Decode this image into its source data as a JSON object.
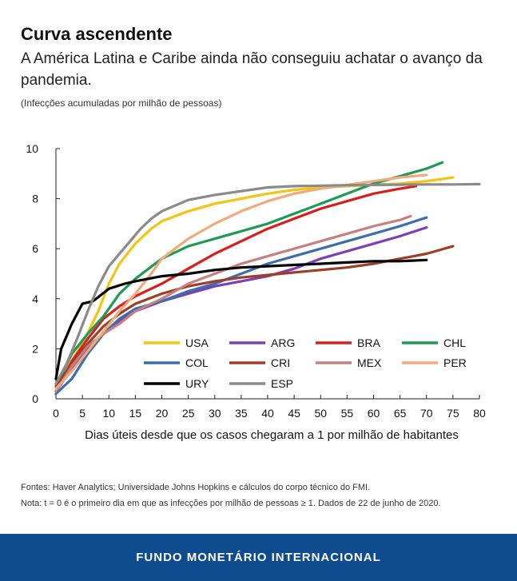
{
  "header": {
    "title": "Curva ascendente",
    "subtitle": "A América Latina e Caribe ainda não conseguiu achatar o avanço da pandemia.",
    "units": "(Infecções acumuladas por milhão de pessoas)"
  },
  "notes": {
    "source": "Fontes: Haver Analytics; Universidade Johns Hopkins e cálculos do corpo técnico do FMI.",
    "note": "Nota: t = 0 é o primeiro dia em que as infecções por milhão de pessoas ≥ 1. Dados de 22 de junho de 2020."
  },
  "footer": {
    "label": "FUNDO MONETÁRIO INTERNACIONAL"
  },
  "chart_data": {
    "type": "line",
    "title": "Curva ascendente",
    "xlabel": "Dias úteis desde que os casos chegaram a 1 por milhão de habitantes",
    "ylabel": "",
    "xlim": [
      0,
      80
    ],
    "ylim": [
      0,
      10
    ],
    "xticks": [
      0,
      5,
      10,
      15,
      20,
      25,
      30,
      35,
      40,
      45,
      50,
      55,
      60,
      65,
      70,
      75,
      80
    ],
    "yticks": [
      0,
      2,
      4,
      6,
      8,
      10
    ],
    "legend_position": "lower-right",
    "series": [
      {
        "name": "USA",
        "color": "#f2c414",
        "x": [
          0,
          2,
          5,
          8,
          10,
          12,
          15,
          18,
          20,
          25,
          30,
          35,
          40,
          45,
          50,
          55,
          60,
          65,
          70,
          75
        ],
        "y": [
          0.6,
          1.2,
          2.2,
          3.5,
          4.6,
          5.4,
          6.2,
          6.8,
          7.1,
          7.5,
          7.8,
          8.0,
          8.2,
          8.35,
          8.45,
          8.5,
          8.55,
          8.6,
          8.7,
          8.85
        ]
      },
      {
        "name": "ARG",
        "color": "#7e3fb5",
        "x": [
          0,
          3,
          6,
          9,
          12,
          15,
          20,
          25,
          30,
          35,
          40,
          45,
          50,
          55,
          60,
          65,
          70
        ],
        "y": [
          0.3,
          1.2,
          2.0,
          2.6,
          3.1,
          3.5,
          3.9,
          4.2,
          4.5,
          4.7,
          4.9,
          5.2,
          5.6,
          5.9,
          6.2,
          6.5,
          6.85
        ]
      },
      {
        "name": "BRA",
        "color": "#d91e1e",
        "x": [
          0,
          3,
          6,
          9,
          12,
          15,
          20,
          25,
          30,
          35,
          40,
          45,
          50,
          55,
          60,
          65,
          68
        ],
        "y": [
          0.3,
          1.5,
          2.4,
          3.2,
          3.7,
          4.1,
          4.6,
          5.2,
          5.8,
          6.3,
          6.8,
          7.2,
          7.6,
          7.9,
          8.2,
          8.4,
          8.5
        ]
      },
      {
        "name": "CHL",
        "color": "#1f9a55",
        "x": [
          0,
          3,
          6,
          9,
          12,
          15,
          20,
          25,
          30,
          35,
          40,
          45,
          50,
          55,
          60,
          65,
          70,
          73
        ],
        "y": [
          0.5,
          1.8,
          2.6,
          3.3,
          4.2,
          4.8,
          5.6,
          6.1,
          6.4,
          6.7,
          7.0,
          7.4,
          7.8,
          8.2,
          8.6,
          8.9,
          9.2,
          9.45
        ]
      },
      {
        "name": "COL",
        "color": "#3d6ea8",
        "x": [
          0,
          3,
          6,
          9,
          12,
          15,
          20,
          25,
          30,
          35,
          40,
          45,
          50,
          55,
          60,
          65,
          70
        ],
        "y": [
          0.2,
          0.8,
          1.8,
          2.6,
          3.2,
          3.6,
          3.9,
          4.3,
          4.6,
          5.0,
          5.4,
          5.7,
          6.0,
          6.3,
          6.6,
          6.9,
          7.25
        ]
      },
      {
        "name": "CRI",
        "color": "#9b3e2a",
        "x": [
          0,
          3,
          6,
          9,
          12,
          15,
          20,
          25,
          30,
          35,
          40,
          45,
          50,
          55,
          60,
          65,
          70,
          75
        ],
        "y": [
          0.5,
          1.4,
          2.2,
          2.9,
          3.4,
          3.8,
          4.2,
          4.5,
          4.7,
          4.85,
          4.95,
          5.05,
          5.15,
          5.25,
          5.4,
          5.6,
          5.8,
          6.1
        ]
      },
      {
        "name": "MEX",
        "color": "#c78080",
        "x": [
          0,
          3,
          6,
          9,
          12,
          15,
          20,
          25,
          30,
          35,
          40,
          45,
          50,
          55,
          60,
          65,
          67
        ],
        "y": [
          0.3,
          1.3,
          2.1,
          2.6,
          3.0,
          3.5,
          4.0,
          4.6,
          5.0,
          5.4,
          5.7,
          6.0,
          6.3,
          6.6,
          6.9,
          7.15,
          7.3
        ]
      },
      {
        "name": "PER",
        "color": "#f0ab7a",
        "x": [
          0,
          3,
          6,
          9,
          12,
          15,
          18,
          20,
          25,
          30,
          35,
          40,
          45,
          50,
          55,
          60,
          65,
          70
        ],
        "y": [
          0.4,
          1.1,
          1.9,
          2.7,
          3.5,
          4.2,
          5.0,
          5.6,
          6.4,
          7.0,
          7.5,
          7.9,
          8.2,
          8.4,
          8.55,
          8.7,
          8.85,
          8.95
        ]
      },
      {
        "name": "URY",
        "color": "#000000",
        "x": [
          0,
          1,
          3,
          5,
          7,
          10,
          13,
          15,
          20,
          25,
          30,
          35,
          40,
          45,
          50,
          55,
          60,
          65,
          70
        ],
        "y": [
          0.8,
          2.0,
          3.0,
          3.8,
          3.9,
          4.4,
          4.6,
          4.7,
          4.9,
          5.0,
          5.15,
          5.25,
          5.3,
          5.35,
          5.4,
          5.45,
          5.5,
          5.5,
          5.55
        ]
      },
      {
        "name": "ESP",
        "color": "#8a8a8a",
        "x": [
          0,
          2,
          4,
          6,
          8,
          10,
          12,
          14,
          16,
          18,
          20,
          25,
          30,
          35,
          40,
          45,
          50,
          55,
          60,
          65,
          70,
          75,
          80
        ],
        "y": [
          0.6,
          1.4,
          2.4,
          3.5,
          4.5,
          5.3,
          5.8,
          6.3,
          6.8,
          7.2,
          7.5,
          7.95,
          8.15,
          8.3,
          8.45,
          8.5,
          8.52,
          8.54,
          8.55,
          8.56,
          8.57,
          8.57,
          8.58
        ]
      }
    ]
  }
}
